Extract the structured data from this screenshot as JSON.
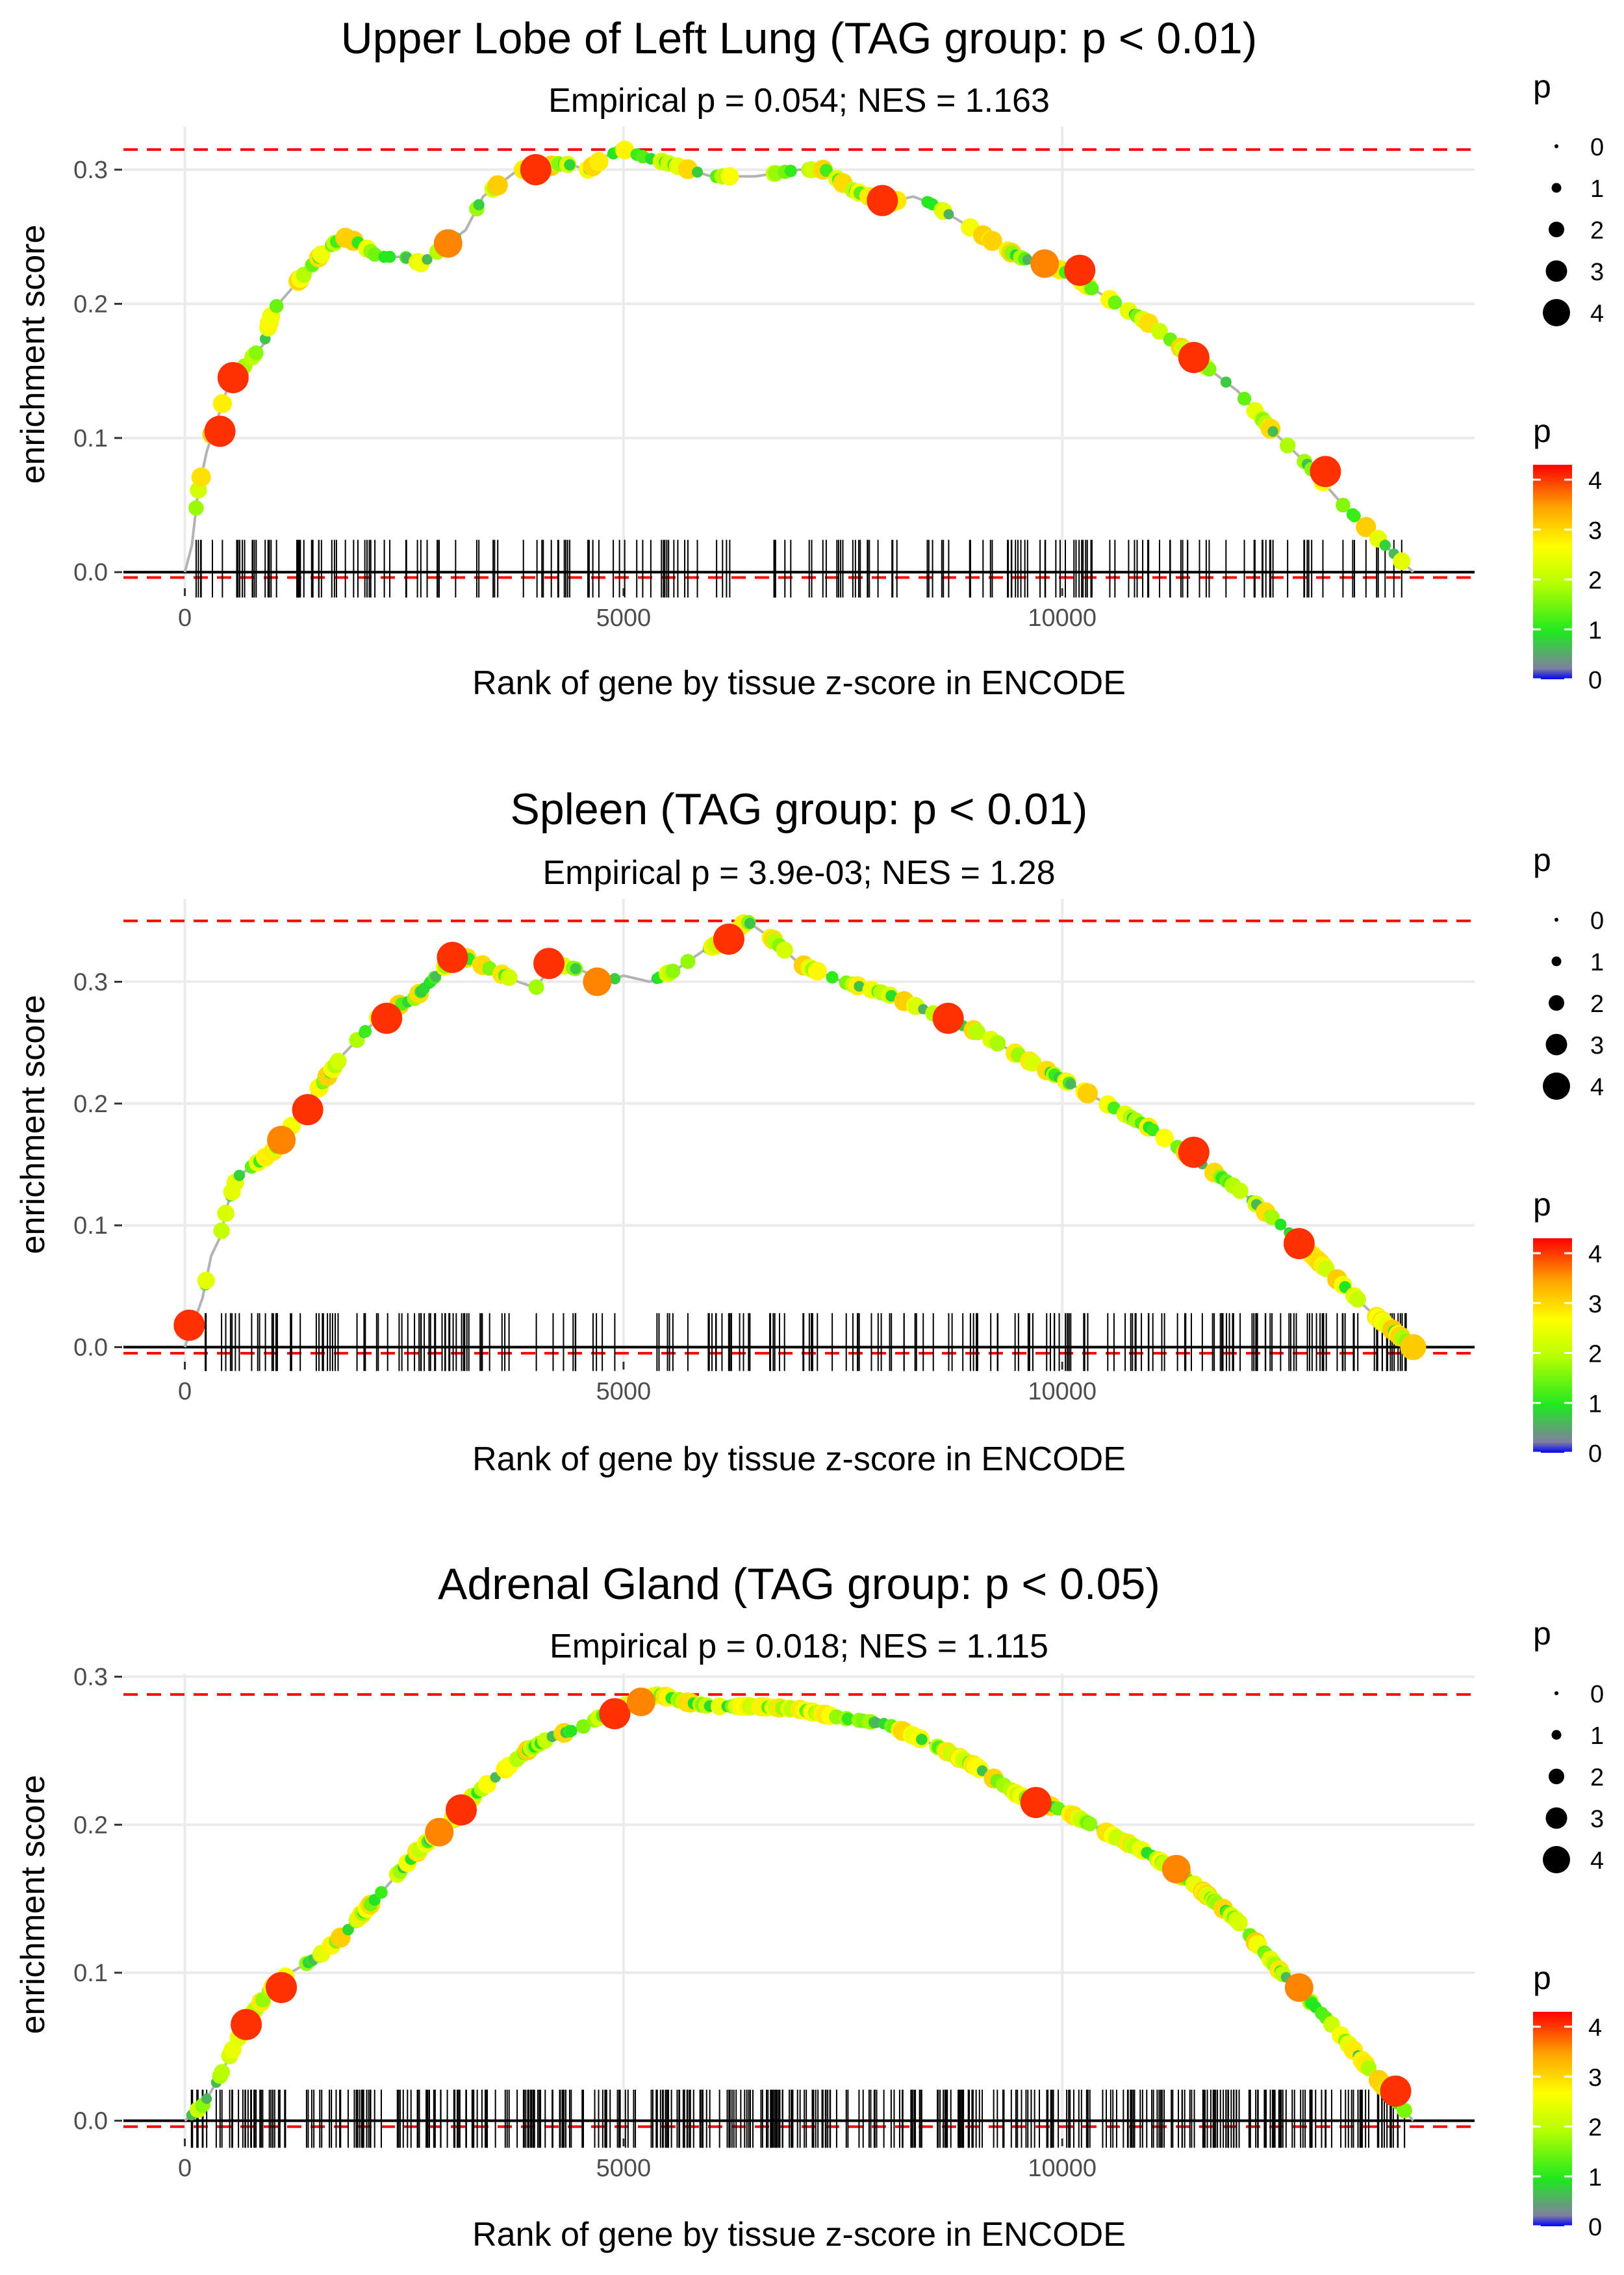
{
  "chart_data": [
    {
      "type": "line",
      "title": "Upper Lobe of Left Lung (TAG group: p < 0.01)",
      "subtitle": "Empirical p = 0.054; NES = 1.163",
      "xlabel": "Rank of gene by tissue z-score in ENCODE",
      "ylabel": "enrichment score",
      "xlim": [
        -700,
        14700
      ],
      "ylim": [
        -0.012,
        0.332
      ],
      "xticks": [
        0,
        5000,
        10000
      ],
      "xtick_labels": [
        "0",
        "5000",
        "10000"
      ],
      "yticks": [
        0,
        0.1,
        0.2,
        0.3
      ],
      "ytick_labels": [
        "0.0",
        "0.1",
        "0.2",
        "0.3"
      ],
      "max_es_line": 0.315,
      "min_es_line": -0.004,
      "curve": [
        [
          0,
          0
        ],
        [
          80,
          0.02
        ],
        [
          150,
          0.06
        ],
        [
          250,
          0.09
        ],
        [
          400,
          0.12
        ],
        [
          500,
          0.14
        ],
        [
          700,
          0.155
        ],
        [
          900,
          0.17
        ],
        [
          1000,
          0.195
        ],
        [
          1200,
          0.21
        ],
        [
          1400,
          0.225
        ],
        [
          1600,
          0.24
        ],
        [
          1800,
          0.25
        ],
        [
          2000,
          0.245
        ],
        [
          2200,
          0.235
        ],
        [
          2500,
          0.235
        ],
        [
          2700,
          0.23
        ],
        [
          3000,
          0.245
        ],
        [
          3200,
          0.255
        ],
        [
          3400,
          0.28
        ],
        [
          3600,
          0.29
        ],
        [
          3800,
          0.3
        ],
        [
          4000,
          0.3
        ],
        [
          4300,
          0.305
        ],
        [
          4600,
          0.3
        ],
        [
          4800,
          0.31
        ],
        [
          5000,
          0.315
        ],
        [
          5200,
          0.31
        ],
        [
          5500,
          0.305
        ],
        [
          6000,
          0.295
        ],
        [
          6500,
          0.295
        ],
        [
          7000,
          0.3
        ],
        [
          7300,
          0.3
        ],
        [
          7600,
          0.285
        ],
        [
          8000,
          0.275
        ],
        [
          8300,
          0.28
        ],
        [
          8500,
          0.275
        ],
        [
          9000,
          0.255
        ],
        [
          9500,
          0.235
        ],
        [
          10000,
          0.225
        ],
        [
          10500,
          0.205
        ],
        [
          11000,
          0.185
        ],
        [
          11500,
          0.16
        ],
        [
          12000,
          0.135
        ],
        [
          12400,
          0.105
        ],
        [
          12800,
          0.08
        ],
        [
          13200,
          0.05
        ],
        [
          13600,
          0.025
        ],
        [
          14000,
          0
        ]
      ],
      "highlights": [
        [
          400,
          0.105,
          4
        ],
        [
          550,
          0.145,
          4
        ],
        [
          4000,
          0.3,
          4
        ],
        [
          7950,
          0.277,
          4
        ],
        [
          10200,
          0.225,
          4
        ],
        [
          11500,
          0.16,
          4
        ],
        [
          13000,
          0.075,
          4
        ],
        [
          3000,
          0.245,
          3.5
        ],
        [
          9800,
          0.23,
          3.5
        ]
      ],
      "legend": {
        "size_title": "p",
        "size_labels": [
          "0",
          "1",
          "2",
          "3",
          "4"
        ],
        "color_title": "p",
        "color_labels": [
          "4",
          "3",
          "2",
          "1",
          "0"
        ]
      }
    },
    {
      "type": "line",
      "title": "Spleen (TAG group: p < 0.01)",
      "subtitle": "Empirical p = 3.9e-03; NES = 1.28",
      "xlabel": "Rank of gene by tissue z-score in ENCODE",
      "ylabel": "enrichment score",
      "xlim": [
        -700,
        14700
      ],
      "ylim": [
        -0.012,
        0.368
      ],
      "xticks": [
        0,
        5000,
        10000
      ],
      "xtick_labels": [
        "0",
        "5000",
        "10000"
      ],
      "yticks": [
        0,
        0.1,
        0.2,
        0.3
      ],
      "ytick_labels": [
        "0.0",
        "0.1",
        "0.2",
        "0.3"
      ],
      "max_es_line": 0.35,
      "min_es_line": -0.005,
      "curve": [
        [
          0,
          0
        ],
        [
          100,
          0.02
        ],
        [
          200,
          0.04
        ],
        [
          300,
          0.075
        ],
        [
          400,
          0.09
        ],
        [
          500,
          0.12
        ],
        [
          600,
          0.14
        ],
        [
          800,
          0.15
        ],
        [
          1000,
          0.16
        ],
        [
          1200,
          0.18
        ],
        [
          1400,
          0.2
        ],
        [
          1600,
          0.22
        ],
        [
          1800,
          0.24
        ],
        [
          2000,
          0.255
        ],
        [
          2200,
          0.27
        ],
        [
          2400,
          0.28
        ],
        [
          2600,
          0.285
        ],
        [
          2800,
          0.3
        ],
        [
          3000,
          0.315
        ],
        [
          3200,
          0.32
        ],
        [
          3500,
          0.31
        ],
        [
          3800,
          0.3
        ],
        [
          4000,
          0.295
        ],
        [
          4200,
          0.315
        ],
        [
          4500,
          0.31
        ],
        [
          4800,
          0.3
        ],
        [
          5000,
          0.305
        ],
        [
          5300,
          0.3
        ],
        [
          5600,
          0.31
        ],
        [
          5900,
          0.325
        ],
        [
          6200,
          0.335
        ],
        [
          6400,
          0.35
        ],
        [
          6700,
          0.335
        ],
        [
          7000,
          0.315
        ],
        [
          7500,
          0.3
        ],
        [
          8000,
          0.29
        ],
        [
          8500,
          0.275
        ],
        [
          9000,
          0.26
        ],
        [
          9500,
          0.24
        ],
        [
          10000,
          0.22
        ],
        [
          10500,
          0.2
        ],
        [
          11000,
          0.18
        ],
        [
          11500,
          0.155
        ],
        [
          12000,
          0.13
        ],
        [
          12500,
          0.1
        ],
        [
          13000,
          0.065
        ],
        [
          13500,
          0.03
        ],
        [
          14000,
          0
        ]
      ],
      "highlights": [
        [
          50,
          0.018,
          4
        ],
        [
          1400,
          0.195,
          4
        ],
        [
          1100,
          0.17,
          3.5
        ],
        [
          2300,
          0.27,
          4
        ],
        [
          3050,
          0.32,
          4
        ],
        [
          4150,
          0.315,
          4
        ],
        [
          4700,
          0.3,
          3.5
        ],
        [
          6200,
          0.335,
          4
        ],
        [
          8700,
          0.27,
          4
        ],
        [
          11500,
          0.16,
          4
        ],
        [
          12700,
          0.085,
          4
        ],
        [
          14000,
          0,
          3
        ]
      ],
      "legend": {
        "size_title": "p",
        "size_labels": [
          "0",
          "1",
          "2",
          "3",
          "4"
        ],
        "color_title": "p",
        "color_labels": [
          "4",
          "3",
          "2",
          "1",
          "0"
        ]
      }
    },
    {
      "type": "line",
      "title": "Adrenal Gland (TAG group: p < 0.05)",
      "subtitle": "Empirical p = 0.018; NES = 1.115",
      "xlabel": "Rank of gene by tissue z-score in ENCODE",
      "ylabel": "enrichment score",
      "xlim": [
        -700,
        14700
      ],
      "ylim": [
        -0.012,
        0.302
      ],
      "xticks": [
        0,
        5000,
        10000
      ],
      "xtick_labels": [
        "0",
        "5000",
        "10000"
      ],
      "yticks": [
        0,
        0.1,
        0.2,
        0.3
      ],
      "ytick_labels": [
        "0.0",
        "0.1",
        "0.2",
        "0.3"
      ],
      "max_es_line": 0.288,
      "min_es_line": -0.004,
      "curve": [
        [
          0,
          0
        ],
        [
          200,
          0.01
        ],
        [
          400,
          0.03
        ],
        [
          600,
          0.055
        ],
        [
          800,
          0.075
        ],
        [
          1000,
          0.09
        ],
        [
          1200,
          0.1
        ],
        [
          1500,
          0.11
        ],
        [
          1800,
          0.125
        ],
        [
          2100,
          0.145
        ],
        [
          2400,
          0.165
        ],
        [
          2700,
          0.185
        ],
        [
          3000,
          0.2
        ],
        [
          3300,
          0.22
        ],
        [
          3600,
          0.235
        ],
        [
          3900,
          0.25
        ],
        [
          4200,
          0.26
        ],
        [
          4500,
          0.265
        ],
        [
          4800,
          0.275
        ],
        [
          5100,
          0.282
        ],
        [
          5400,
          0.288
        ],
        [
          5700,
          0.283
        ],
        [
          6000,
          0.28
        ],
        [
          6500,
          0.28
        ],
        [
          7000,
          0.278
        ],
        [
          7500,
          0.272
        ],
        [
          8000,
          0.268
        ],
        [
          8500,
          0.255
        ],
        [
          9000,
          0.24
        ],
        [
          9500,
          0.22
        ],
        [
          10000,
          0.21
        ],
        [
          10500,
          0.195
        ],
        [
          11000,
          0.18
        ],
        [
          11500,
          0.16
        ],
        [
          12000,
          0.135
        ],
        [
          12500,
          0.1
        ],
        [
          13000,
          0.07
        ],
        [
          13500,
          0.035
        ],
        [
          14000,
          0
        ]
      ],
      "highlights": [
        [
          700,
          0.065,
          4
        ],
        [
          1100,
          0.09,
          4
        ],
        [
          3150,
          0.21,
          4
        ],
        [
          4900,
          0.275,
          4
        ],
        [
          5200,
          0.283,
          3.5
        ],
        [
          9700,
          0.215,
          4
        ],
        [
          11300,
          0.17,
          3.5
        ],
        [
          13800,
          0.02,
          4
        ],
        [
          2900,
          0.195,
          3.5
        ],
        [
          12700,
          0.09,
          3.5
        ]
      ],
      "legend": {
        "size_title": "p",
        "size_labels": [
          "0",
          "1",
          "2",
          "3",
          "4"
        ],
        "color_title": "p",
        "color_labels": [
          "4",
          "3",
          "2",
          "1",
          "0"
        ]
      }
    }
  ]
}
